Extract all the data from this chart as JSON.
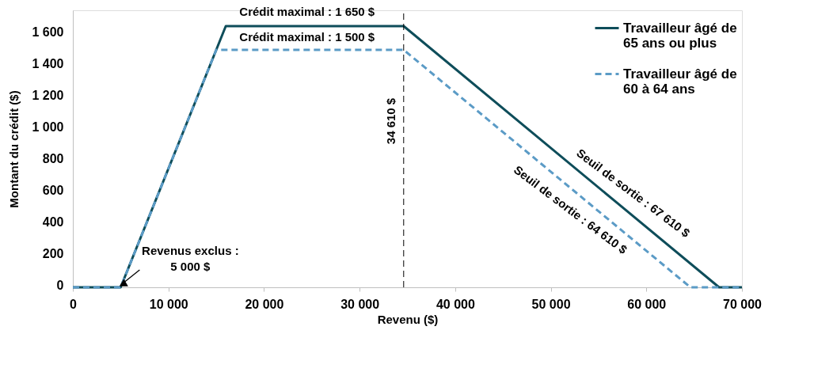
{
  "chart_data": {
    "type": "line",
    "xlabel": "Revenu ($)",
    "ylabel": "Montant du crédit ($)",
    "xlim": [
      0,
      70000
    ],
    "ylim": [
      0,
      1750
    ],
    "xticks": [
      0,
      {
        "value": 10000,
        "label": "10 000"
      },
      {
        "value": 20000,
        "label": "20 000"
      },
      {
        "value": 30000,
        "label": "30 000"
      },
      {
        "value": 40000,
        "label": "40 000"
      },
      {
        "value": 50000,
        "label": "50 000"
      },
      {
        "value": 60000,
        "label": "60 000"
      },
      {
        "value": 70000,
        "label": "70 000"
      }
    ],
    "yticks": [
      0,
      200,
      400,
      600,
      800,
      {
        "value": 1000,
        "label": "1 000"
      },
      {
        "value": 1200,
        "label": "1 200"
      },
      {
        "value": 1400,
        "label": "1 400"
      },
      {
        "value": 1600,
        "label": "1 600"
      }
    ],
    "series": [
      {
        "name": "Travailleur âgé de 65 ans ou plus",
        "color": "#0e4d5a",
        "line_style": "solid",
        "x": [
          0,
          5000,
          16000,
          34610,
          67610,
          70000
        ],
        "values": [
          0,
          0,
          1650,
          1650,
          0,
          0
        ]
      },
      {
        "name": "Travailleur âgé de 60 à 64 ans",
        "color": "#5b9bc6",
        "line_style": "dashed",
        "x": [
          0,
          5000,
          15000,
          34610,
          64610,
          70000
        ],
        "values": [
          0,
          0,
          1500,
          1500,
          0,
          0
        ]
      }
    ],
    "ref_lines": [
      {
        "axis": "x",
        "value": 34610,
        "label": "34 610 $",
        "color": "#000000",
        "line_style": "dashed"
      }
    ],
    "annotations": [
      {
        "text": "Crédit maximal : 1 650 $",
        "x": 24500,
        "y": 1650
      },
      {
        "text": "Crédit maximal : 1 500 $",
        "x": 24500,
        "y": 1500
      },
      {
        "text": "Revenus exclus : 5 000 $",
        "x": 5000,
        "y": 0
      },
      {
        "text": "Seuil de sortie : 67 610 $",
        "x": 57000,
        "y": 531
      },
      {
        "text": "Seuil de sortie : 64 610 $",
        "x": 53500,
        "y": 555
      }
    ],
    "legend": "top right",
    "grid": false,
    "marker": "none"
  }
}
